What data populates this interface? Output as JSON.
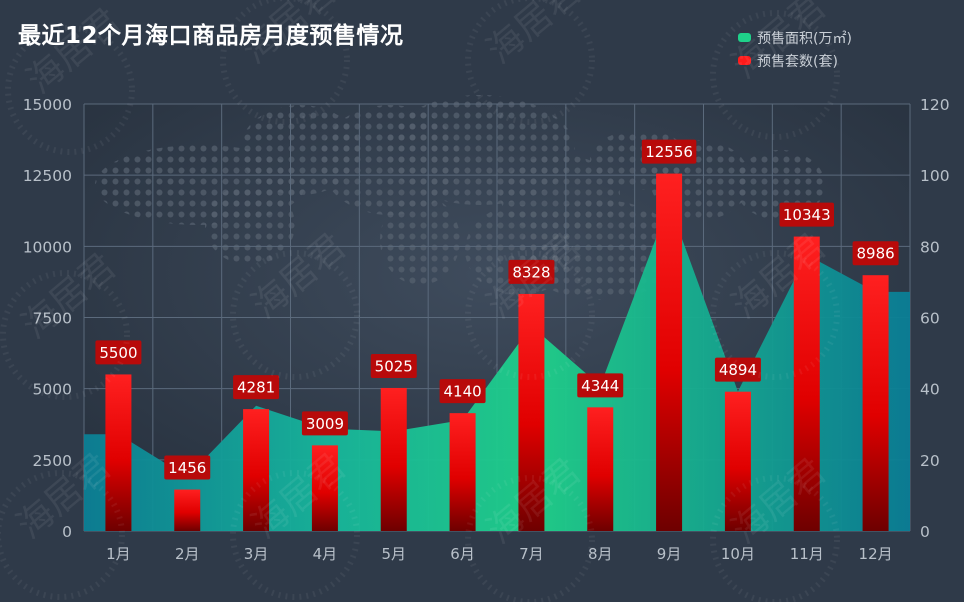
{
  "chart_data": {
    "type": "bar",
    "title": "最近12个月海口商品房月度预售情况",
    "categories": [
      "1月",
      "2月",
      "3月",
      "4月",
      "5月",
      "6月",
      "7月",
      "8月",
      "9月",
      "10月",
      "11月",
      "12月"
    ],
    "series": [
      {
        "name": "预售面积(万㎡)",
        "type": "area",
        "axis": "left",
        "values": [
          3400,
          1900,
          4400,
          3600,
          3500,
          3900,
          7200,
          5100,
          11500,
          4900,
          9700,
          8400
        ]
      },
      {
        "name": "预售套数(套)",
        "type": "bar",
        "axis": "left",
        "values": [
          5500,
          1456,
          4281,
          3009,
          5025,
          4140,
          8328,
          4344,
          12556,
          4894,
          10343,
          8986
        ]
      }
    ],
    "yleft": {
      "lim": [
        0,
        15000
      ],
      "ticks": [
        "0",
        "2500",
        "5000",
        "7500",
        "10000",
        "12500",
        "15000"
      ]
    },
    "yright": {
      "lim": [
        0,
        120
      ],
      "ticks": [
        "0",
        "20",
        "40",
        "60",
        "80",
        "100",
        "120"
      ]
    },
    "grid": true,
    "legend": "top-right"
  },
  "watermark": "海居君",
  "colors": {
    "bar_top": "#ff1a1a",
    "bar_bottom": "#7a0000",
    "area_top": "#1fd18a",
    "area_bottom": "#0a8ea0",
    "label_bg": "#b80a0a",
    "grid": "#5b6a7c",
    "tick": "#b8c0c9"
  }
}
